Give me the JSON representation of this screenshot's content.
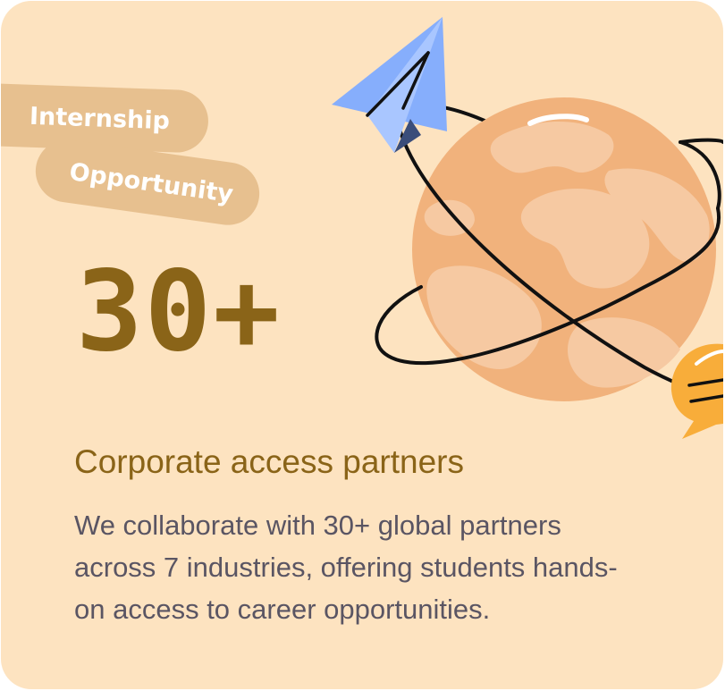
{
  "tags": {
    "first": "Internship",
    "second": "Opportunity"
  },
  "stat": {
    "value": "30+"
  },
  "subtitle": "Corporate access partners",
  "description": "We collaborate with 30+ global partners across 7 industries, offering students hands-on access to career opportunities.",
  "illustration": {
    "icons": [
      "globe-icon",
      "paper-plane-icon",
      "chat-bubble-icon"
    ]
  },
  "colors": {
    "card_background": "#fde3c0",
    "pill_background": "#e7c08f",
    "accent_text": "#8a6418",
    "body_text": "#5a5563",
    "globe_ocean": "#f1b27c",
    "globe_land": "#f6c9a2",
    "plane": "#86aefc",
    "bubble": "#f8ad3a"
  }
}
